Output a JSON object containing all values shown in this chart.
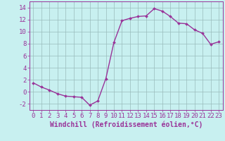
{
  "x": [
    0,
    1,
    2,
    3,
    4,
    5,
    6,
    7,
    8,
    9,
    10,
    11,
    12,
    13,
    14,
    15,
    16,
    17,
    18,
    19,
    20,
    21,
    22,
    23
  ],
  "y": [
    1.5,
    0.8,
    0.3,
    -0.3,
    -0.7,
    -0.8,
    -0.9,
    -2.2,
    -1.5,
    2.2,
    8.2,
    11.8,
    12.2,
    12.5,
    12.6,
    13.8,
    13.4,
    12.5,
    11.4,
    11.3,
    10.3,
    9.7,
    7.9,
    8.3
  ],
  "line_color": "#993399",
  "marker": "D",
  "marker_size": 2.0,
  "xlabel": "Windchill (Refroidissement éolien,°C)",
  "xlabel_fontsize": 7,
  "ylabel_ticks": [
    -2,
    0,
    2,
    4,
    6,
    8,
    10,
    12,
    14
  ],
  "xtick_labels": [
    "0",
    "1",
    "2",
    "3",
    "4",
    "5",
    "6",
    "7",
    "8",
    "9",
    "10",
    "11",
    "12",
    "13",
    "14",
    "15",
    "16",
    "17",
    "18",
    "19",
    "20",
    "21",
    "22",
    "23"
  ],
  "ylim": [
    -3,
    15
  ],
  "xlim": [
    -0.5,
    23.5
  ],
  "bg_color": "#c8f0f0",
  "grid_color": "#99bbbb",
  "tick_color": "#993399",
  "tick_fontsize": 6.5,
  "line_width": 1.0
}
